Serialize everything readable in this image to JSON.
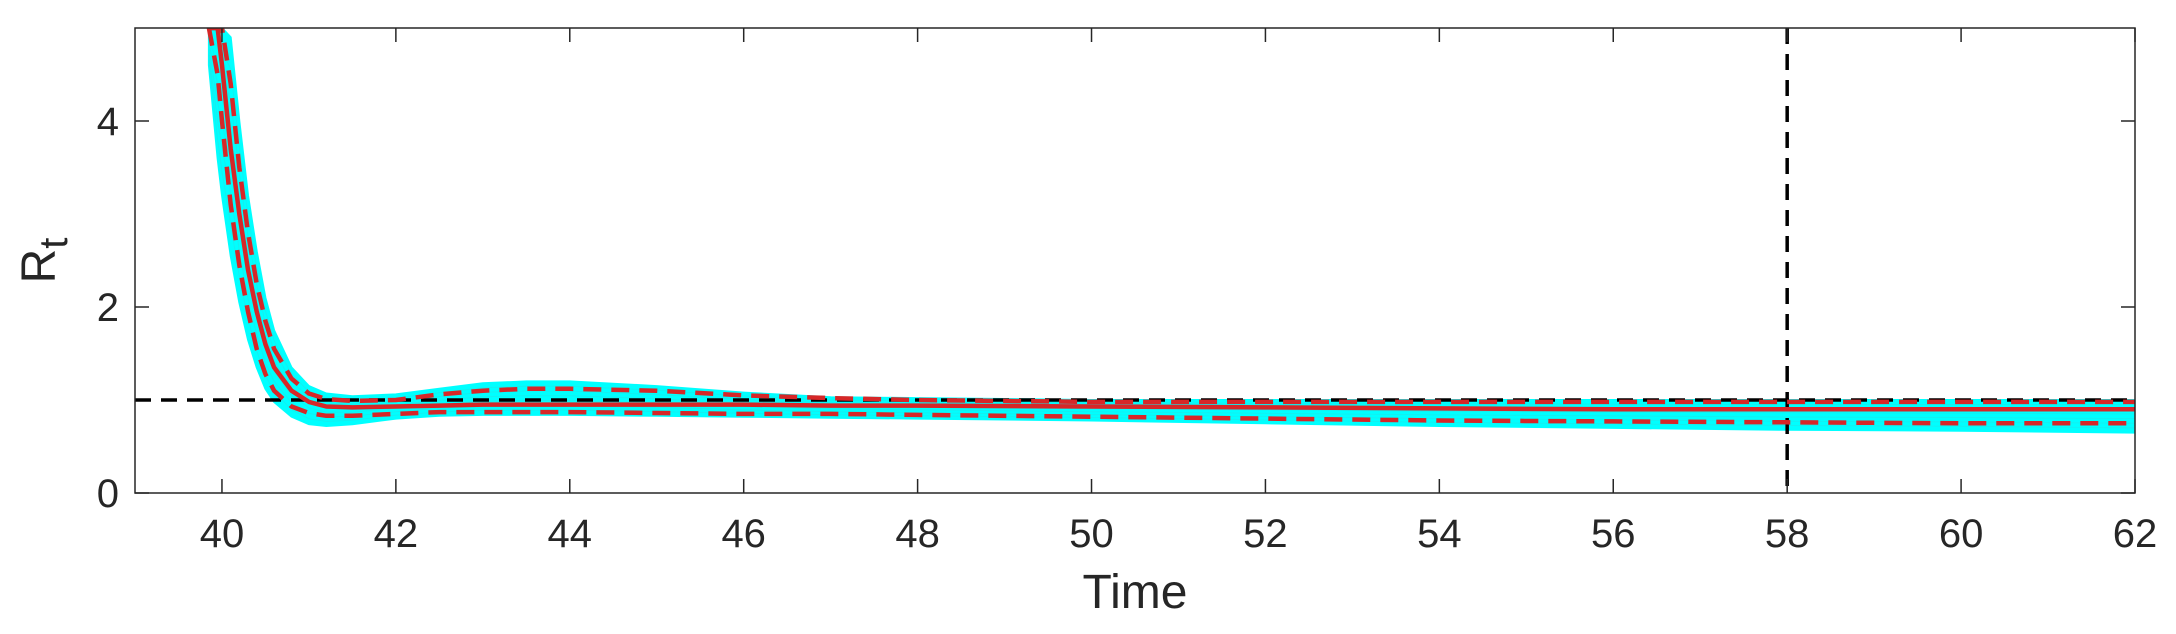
{
  "chart_data": {
    "type": "line",
    "xlabel": "Time",
    "ylabel": "R",
    "ylabel_subscript": "t",
    "xlim": [
      39,
      62
    ],
    "ylim": [
      0,
      5
    ],
    "x_ticks": [
      40,
      42,
      44,
      46,
      48,
      50,
      52,
      54,
      56,
      58,
      60,
      62
    ],
    "y_ticks": [
      0,
      2,
      4
    ],
    "grid": false,
    "colors": {
      "ensemble": "#00ffff",
      "median": "#d62728",
      "ci": "#d62728",
      "reference": "#000000",
      "axes": "#262626"
    },
    "reference_lines": [
      {
        "orientation": "horizontal",
        "value": 1,
        "style": "dashed"
      },
      {
        "orientation": "vertical",
        "value": 58,
        "style": "dashed"
      }
    ],
    "x": [
      39.85,
      39.95,
      40.0,
      40.1,
      40.2,
      40.3,
      40.4,
      40.5,
      40.6,
      40.8,
      41.0,
      41.2,
      41.5,
      42.0,
      42.5,
      43.0,
      43.5,
      44.0,
      45.0,
      46.0,
      47.0,
      48.0,
      50.0,
      52.0,
      54.0,
      56.0,
      58.0,
      60.0,
      62.0
    ],
    "series": [
      {
        "role": "ensemble_upper",
        "values": [
          5.0,
          5.0,
          5.0,
          4.9,
          4.0,
          3.2,
          2.6,
          2.1,
          1.75,
          1.35,
          1.15,
          1.07,
          1.04,
          1.06,
          1.12,
          1.18,
          1.2,
          1.2,
          1.15,
          1.08,
          1.03,
          1.02,
          1.0,
          1.0,
          1.0,
          1.0,
          1.0,
          1.0,
          1.0
        ]
      },
      {
        "role": "ensemble_lower",
        "values": [
          4.6,
          3.6,
          3.2,
          2.55,
          2.05,
          1.65,
          1.35,
          1.12,
          0.98,
          0.82,
          0.74,
          0.72,
          0.74,
          0.8,
          0.83,
          0.84,
          0.84,
          0.84,
          0.83,
          0.82,
          0.81,
          0.8,
          0.78,
          0.75,
          0.72,
          0.7,
          0.68,
          0.67,
          0.65
        ]
      },
      {
        "role": "median",
        "style": "solid",
        "values": [
          5.0,
          5.0,
          4.6,
          3.7,
          3.0,
          2.4,
          1.95,
          1.6,
          1.35,
          1.1,
          0.98,
          0.93,
          0.92,
          0.93,
          0.94,
          0.95,
          0.95,
          0.95,
          0.95,
          0.95,
          0.94,
          0.94,
          0.93,
          0.92,
          0.91,
          0.9,
          0.9,
          0.9,
          0.9
        ]
      },
      {
        "role": "upper_ci",
        "style": "dashed",
        "values": [
          5.0,
          5.0,
          5.0,
          4.4,
          3.5,
          2.8,
          2.25,
          1.85,
          1.55,
          1.23,
          1.07,
          1.01,
          0.99,
          1.0,
          1.06,
          1.1,
          1.12,
          1.12,
          1.1,
          1.05,
          1.02,
          1.0,
          0.98,
          0.98,
          0.98,
          0.98,
          0.98,
          0.98,
          0.98
        ]
      },
      {
        "role": "lower_ci",
        "style": "dashed",
        "values": [
          5.0,
          4.5,
          4.0,
          3.1,
          2.45,
          1.95,
          1.55,
          1.28,
          1.1,
          0.93,
          0.86,
          0.83,
          0.83,
          0.85,
          0.87,
          0.87,
          0.87,
          0.87,
          0.86,
          0.85,
          0.85,
          0.84,
          0.82,
          0.8,
          0.78,
          0.77,
          0.76,
          0.75,
          0.75
        ]
      }
    ]
  }
}
